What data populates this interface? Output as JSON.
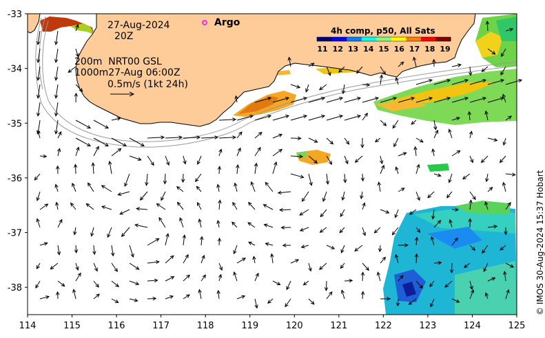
{
  "date_label": "27-Aug-2024",
  "time_label": "20Z",
  "argo_label": "Argo",
  "colorbar": {
    "title": "4h comp, p50, All Sats",
    "ticks": [
      "11",
      "12",
      "13",
      "14",
      "15",
      "16",
      "17",
      "18",
      "19"
    ],
    "colors": [
      "#00007f",
      "#0000ff",
      "#007fff",
      "#00ffff",
      "#7fff7f",
      "#ffff00",
      "#ff7f00",
      "#ff0000",
      "#7f0000"
    ]
  },
  "contours_label": "200m  NRT00 GSL",
  "contours_label2": "1000m27-Aug 06:00Z",
  "scale_label": "0.5m/s (1kt 24h)",
  "x_axis": {
    "ticks": [
      "114",
      "115",
      "116",
      "117",
      "118",
      "119",
      "120",
      "121",
      "122",
      "123",
      "124",
      "125"
    ],
    "range": [
      114,
      125
    ]
  },
  "y_axis": {
    "ticks": [
      "-33",
      "-34",
      "-35",
      "-36",
      "-37",
      "-38"
    ],
    "range": [
      -38.5,
      -33
    ]
  },
  "credit": "© IMOS 30-Aug-2024 15:37 Hobart",
  "colors": {
    "land": "#fdcc99",
    "coast": "#000000",
    "isobath": "#999999"
  }
}
